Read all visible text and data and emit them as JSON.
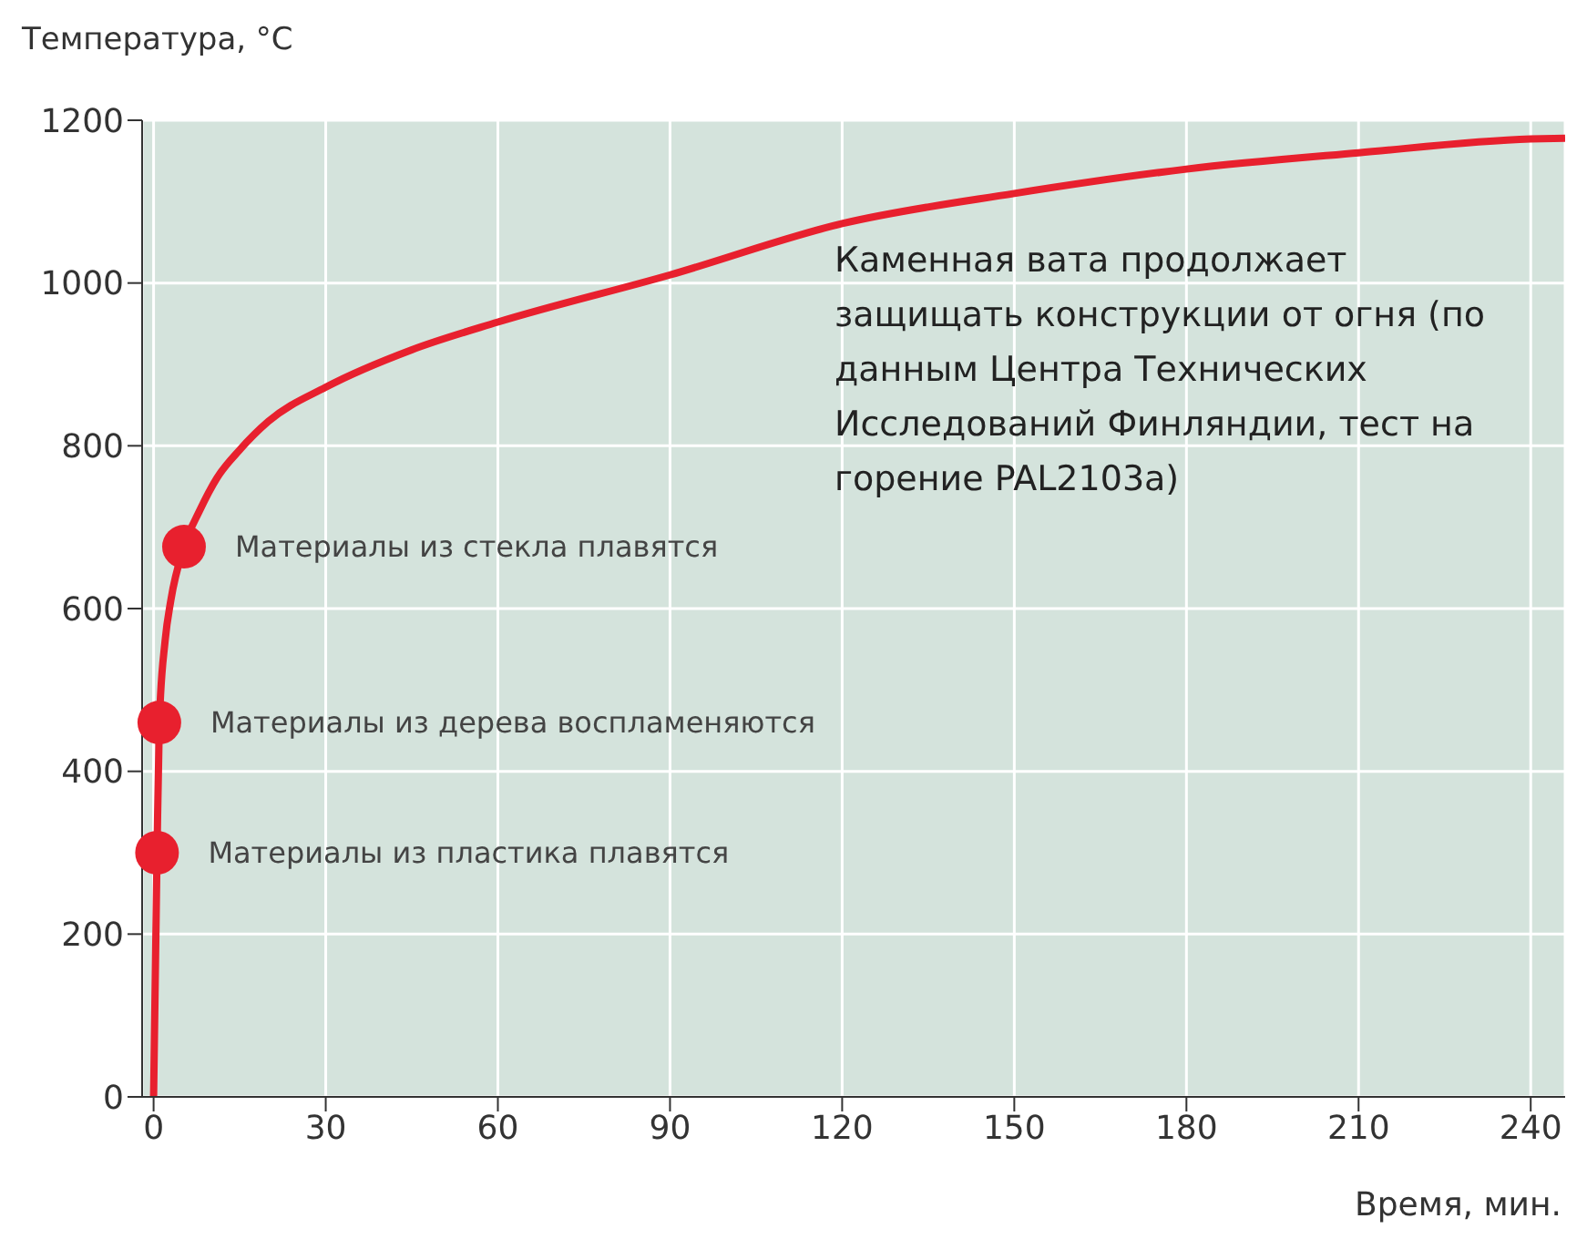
{
  "chart_data": {
    "type": "line",
    "ylabel": "Температура, °C",
    "xlabel": "Время,  мин.",
    "x": [
      0,
      0.6,
      1,
      2,
      3,
      5.3,
      8,
      11,
      15,
      20,
      30,
      45,
      60,
      90,
      120,
      150,
      180,
      210,
      240,
      246
    ],
    "series": [
      {
        "color": "#e8202e",
        "values": [
          0,
          300,
          460,
          560,
          610,
          676,
          720,
          760,
          795,
          830,
          872,
          918,
          952,
          1010,
          1073,
          1110,
          1140,
          1160,
          1177,
          1178
        ]
      }
    ],
    "xlim": [
      -2,
      246
    ],
    "xticks": [
      0,
      30,
      60,
      90,
      120,
      150,
      180,
      210,
      240
    ],
    "ylim": [
      0,
      1200
    ],
    "yticks": [
      0,
      200,
      400,
      600,
      800,
      1000,
      1200
    ],
    "grid": true,
    "marker": "none",
    "line_style": "solid",
    "annotations": [
      {
        "text": "Материалы из стекла плавятся",
        "x": 5.3,
        "y": 676
      },
      {
        "text": "Материалы из дерева воспламеняются",
        "x": 1,
        "y": 460
      },
      {
        "text": "Материалы из пластика плавятся",
        "x": 0.6,
        "y": 300
      },
      "Каменная вата продолжает защищать конструкции от огня (по данным Центра Технических Исследований Финляндии, тест на горение PAL2103a)"
    ]
  }
}
